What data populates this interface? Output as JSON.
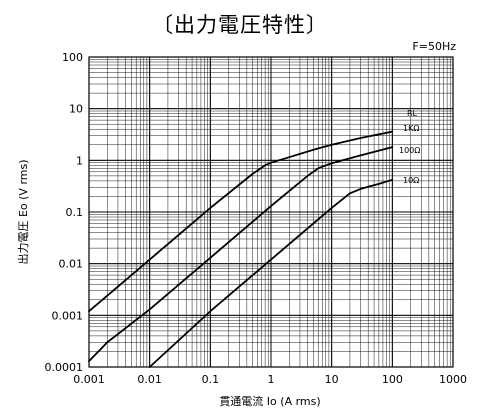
{
  "chart_data": {
    "type": "line",
    "title": "〔出力電圧特性〕",
    "annotation": "F=50Hz",
    "xlabel": "貫通電流 Io (A rms)",
    "ylabel": "出力電圧 Eo (V rms)",
    "x_scale": "log",
    "y_scale": "log",
    "xlim": [
      0.001,
      1000
    ],
    "ylim": [
      0.0001,
      100
    ],
    "x_ticks": [
      0.001,
      0.01,
      0.1,
      1,
      10,
      100,
      1000
    ],
    "x_tick_labels": [
      "0.001",
      "0.01",
      "0.1",
      "1",
      "10",
      "100",
      "1000"
    ],
    "y_ticks": [
      0.0001,
      0.001,
      0.01,
      0.1,
      1,
      10,
      100
    ],
    "y_tick_labels": [
      "0.0001",
      "0.001",
      "0.01",
      "0.1",
      "1",
      "10",
      "100"
    ],
    "grid": true,
    "legend_title": "RL",
    "series": [
      {
        "name": "1KΩ",
        "points": [
          [
            0.001,
            0.0012
          ],
          [
            0.01,
            0.012
          ],
          [
            0.1,
            0.12
          ],
          [
            0.5,
            0.55
          ],
          [
            0.8,
            0.8
          ],
          [
            1.0,
            0.9
          ],
          [
            2.0,
            1.15
          ],
          [
            5.0,
            1.6
          ],
          [
            10,
            2.0
          ],
          [
            30,
            2.7
          ],
          [
            100,
            3.6
          ]
        ]
      },
      {
        "name": "100Ω",
        "points": [
          [
            0.001,
            0.00013
          ],
          [
            0.002,
            0.0003
          ],
          [
            0.01,
            0.0013
          ],
          [
            0.1,
            0.013
          ],
          [
            1.0,
            0.13
          ],
          [
            4.0,
            0.5
          ],
          [
            6.0,
            0.7
          ],
          [
            10,
            0.88
          ],
          [
            30,
            1.25
          ],
          [
            100,
            1.8
          ]
        ]
      },
      {
        "name": "10Ω",
        "points": [
          [
            0.01,
            0.0001
          ],
          [
            0.1,
            0.0012
          ],
          [
            1.0,
            0.012
          ],
          [
            10,
            0.12
          ],
          [
            20,
            0.23
          ],
          [
            30,
            0.28
          ],
          [
            60,
            0.35
          ],
          [
            100,
            0.42
          ]
        ]
      }
    ]
  }
}
